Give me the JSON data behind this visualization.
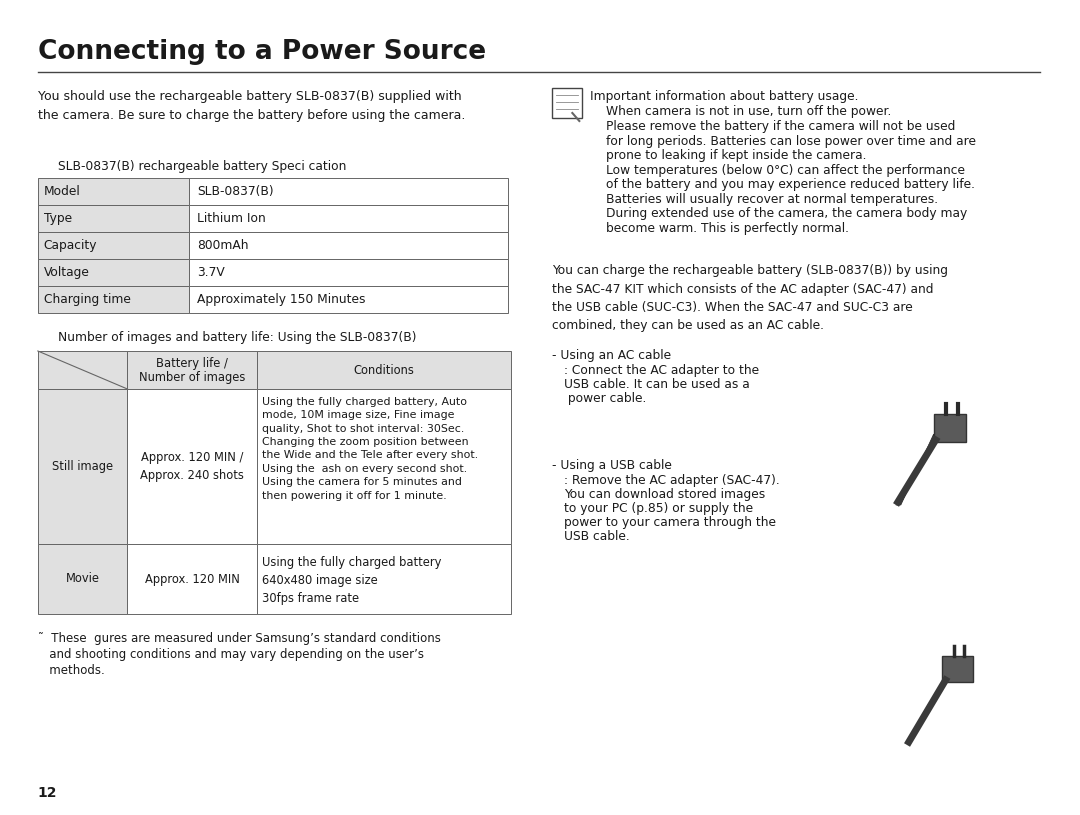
{
  "title": "Connecting to a Power Source",
  "bg_color": "#ffffff",
  "text_color": "#1a1a1a",
  "table_cell_bg": "#e0e0e0",
  "table_white_bg": "#ffffff",
  "intro_text": "You should use the rechargeable battery SLB-0837(B) supplied with\nthe camera. Be sure to charge the battery before using the camera.",
  "spec_table_title": "SLB-0837(B) rechargeable battery Speci cation",
  "spec_rows": [
    [
      "Model",
      "SLB-0837(B)"
    ],
    [
      "Type",
      "Lithium Ion"
    ],
    [
      "Capacity",
      "800mAh"
    ],
    [
      "Voltage",
      "3.7V"
    ],
    [
      "Charging time",
      "Approximately 150 Minutes"
    ]
  ],
  "battery_table_title": "Number of images and battery life: Using the SLB-0837(B)",
  "right_note_title": "Important information about battery usage.",
  "right_note_line1": "When camera is not in use, turn off the power.",
  "right_note_lines": [
    "Please remove the battery if the camera will not be used",
    "for long periods. Batteries can lose power over time and are",
    "prone to leaking if kept inside the camera.",
    "Low temperatures (below 0°C) can affect the performance",
    "of the battery and you may experience reduced battery life.",
    "Batteries will usually recover at normal temperatures.",
    "During extended use of the camera, the camera body may",
    "become warm. This is perfectly normal."
  ],
  "charge_text": "You can charge the rechargeable battery (SLB-0837(B)) by using\nthe SAC-47 KIT which consists of the AC adapter (SAC-47) and\nthe USB cable (SUC-C3). When the SAC-47 and SUC-C3 are\ncombined, they can be used as an AC cable.",
  "ac_cable_title": "- Using an AC cable",
  "ac_cable_lines": [
    ": Connect the AC adapter to the",
    "USB cable. It can be used as a",
    " power cable."
  ],
  "usb_cable_title": "- Using a USB cable",
  "usb_cable_lines": [
    ": Remove the AC adapter (SAC-47).",
    "You can download stored images",
    "to your PC (p.85) or supply the",
    "power to your camera through the",
    "USB cable."
  ],
  "footnote_line1": "˜  These  gures are measured under Samsung’s standard conditions",
  "footnote_line2": "   and shooting conditions and may vary depending on the user’s",
  "footnote_line3": "   methods.",
  "page_num": "12"
}
